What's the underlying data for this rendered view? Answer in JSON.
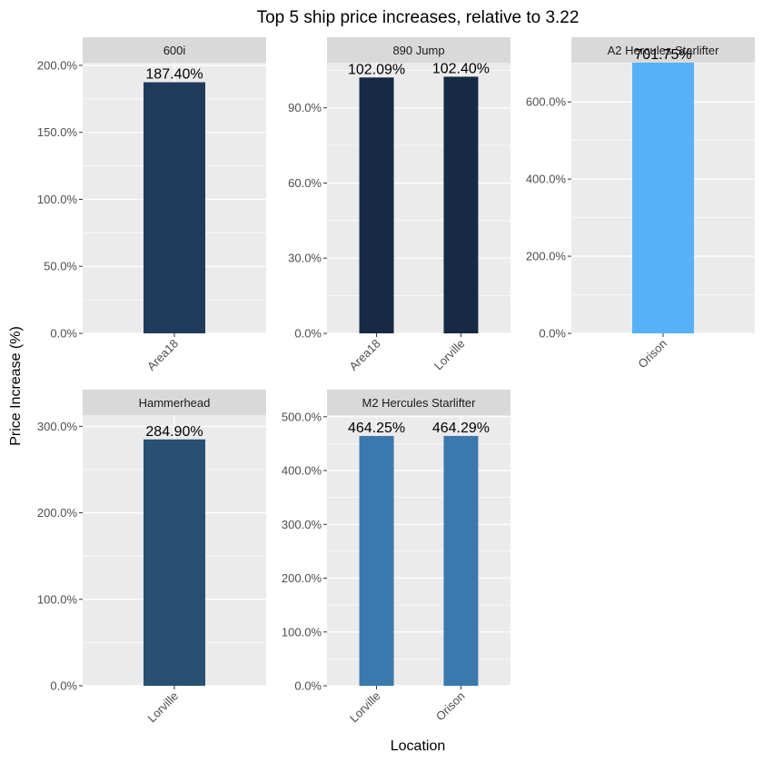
{
  "chart_data": {
    "type": "bar",
    "title": "Top 5 ship price increases, relative to 3.22",
    "xlabel": "Location",
    "ylabel": "Price Increase (%)",
    "facets": [
      {
        "name": "600i",
        "categories": [
          "Area18"
        ],
        "values": [
          187.4
        ],
        "value_labels": [
          "187.40%"
        ],
        "colors": [
          "#1F3B5B"
        ],
        "ylim": [
          0,
          202
        ],
        "yticks": [
          0,
          50,
          100,
          150,
          200
        ],
        "ytick_labels": [
          "0.0%",
          "50.0%",
          "100.0%",
          "150.0%",
          "200.0%"
        ]
      },
      {
        "name": "890 Jump",
        "categories": [
          "Area18",
          "Lorville"
        ],
        "values": [
          102.09,
          102.4
        ],
        "value_labels": [
          "102.09%",
          "102.40%"
        ],
        "colors": [
          "#162B43",
          "#162B43"
        ],
        "ylim": [
          0,
          108
        ],
        "yticks": [
          0,
          30,
          60,
          90
        ],
        "ytick_labels": [
          "0.0%",
          "30.0%",
          "60.0%",
          "90.0%"
        ]
      },
      {
        "name": "A2 Hercules Starlifter",
        "categories": [
          "Orison"
        ],
        "values": [
          701.75
        ],
        "value_labels": [
          "701.75%"
        ],
        "colors": [
          "#56B1F7"
        ],
        "ylim": [
          0,
          701.75
        ],
        "yticks": [
          0,
          200,
          400,
          600
        ],
        "ytick_labels": [
          "0.0%",
          "200.0%",
          "400.0%",
          "600.0%"
        ]
      },
      {
        "name": "Hammerhead",
        "categories": [
          "Lorville"
        ],
        "values": [
          284.9
        ],
        "value_labels": [
          "284.90%"
        ],
        "colors": [
          "#275073"
        ],
        "ylim": [
          0,
          313
        ],
        "yticks": [
          0,
          100,
          200,
          300
        ],
        "ytick_labels": [
          "0.0%",
          "100.0%",
          "200.0%",
          "300.0%"
        ]
      },
      {
        "name": "M2 Hercules Starlifter",
        "categories": [
          "Lorville",
          "Orison"
        ],
        "values": [
          464.25,
          464.29
        ],
        "value_labels": [
          "464.25%",
          "464.29%"
        ],
        "colors": [
          "#3B78AD",
          "#3B78AD"
        ],
        "ylim": [
          0,
          503
        ],
        "yticks": [
          0,
          100,
          200,
          300,
          400,
          500
        ],
        "ytick_labels": [
          "0.0%",
          "100.0%",
          "200.0%",
          "300.0%",
          "400.0%",
          "500.0%"
        ]
      }
    ],
    "panel_background": "#EBEBEB",
    "strip_background": "#D9D9D9",
    "grid": true,
    "legend": "none"
  }
}
